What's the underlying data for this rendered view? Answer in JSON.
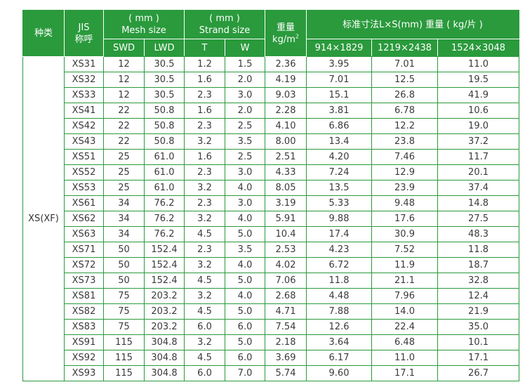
{
  "header": {
    "category": "种类",
    "jis_line1": "JIS",
    "jis_line2": "称呼",
    "mesh_line1": "( mm )",
    "mesh_line2": "Mesh size",
    "strand_line1": "( mm )",
    "strand_line2": "Strand size",
    "weight_line1": "重量",
    "weight_unit": "kg/m",
    "weight_unit_sup": "2",
    "sheet_group": "标准寸法L×S(mm) 重量 ( kg/片 )",
    "sub": {
      "swd": "SWD",
      "lwd": "LWD",
      "t": "T",
      "w": "W",
      "s1": "914×1829",
      "s2": "1219×2438",
      "s3": "1524×3048"
    }
  },
  "group_label": "XS(XF)",
  "rows": [
    {
      "jis": "XS31",
      "swd": "12",
      "lwd": "30.5",
      "t": "1.2",
      "w": "1.5",
      "kgm2": "2.36",
      "s1": "3.95",
      "s2": "7.01",
      "s3": "11.0"
    },
    {
      "jis": "XS32",
      "swd": "12",
      "lwd": "30.5",
      "t": "1.6",
      "w": "2.0",
      "kgm2": "4.19",
      "s1": "7.01",
      "s2": "12.5",
      "s3": "19.5"
    },
    {
      "jis": "XS33",
      "swd": "12",
      "lwd": "30.5",
      "t": "2.3",
      "w": "3.0",
      "kgm2": "9.03",
      "s1": "15.1",
      "s2": "26.8",
      "s3": "41.9"
    },
    {
      "jis": "XS41",
      "swd": "22",
      "lwd": "50.8",
      "t": "1.6",
      "w": "2.0",
      "kgm2": "2.28",
      "s1": "3.81",
      "s2": "6.78",
      "s3": "10.6"
    },
    {
      "jis": "XS42",
      "swd": "22",
      "lwd": "50.8",
      "t": "2.3",
      "w": "2.5",
      "kgm2": "4.10",
      "s1": "6.86",
      "s2": "12.2",
      "s3": "19.0"
    },
    {
      "jis": "XS43",
      "swd": "22",
      "lwd": "50.8",
      "t": "3.2",
      "w": "3.5",
      "kgm2": "8.00",
      "s1": "13.4",
      "s2": "23.8",
      "s3": "37.2"
    },
    {
      "jis": "XS51",
      "swd": "25",
      "lwd": "61.0",
      "t": "1.6",
      "w": "2.5",
      "kgm2": "2.51",
      "s1": "4.20",
      "s2": "7.46",
      "s3": "11.7"
    },
    {
      "jis": "XS52",
      "swd": "25",
      "lwd": "61.0",
      "t": "2.3",
      "w": "3.0",
      "kgm2": "4.33",
      "s1": "7.24",
      "s2": "12.9",
      "s3": "20.1"
    },
    {
      "jis": "XS53",
      "swd": "25",
      "lwd": "61.0",
      "t": "3.2",
      "w": "4.0",
      "kgm2": "8.05",
      "s1": "13.5",
      "s2": "23.9",
      "s3": "37.4"
    },
    {
      "jis": "XS61",
      "swd": "34",
      "lwd": "76.2",
      "t": "2.3",
      "w": "3.0",
      "kgm2": "3.19",
      "s1": "5.33",
      "s2": "9.48",
      "s3": "14.8"
    },
    {
      "jis": "XS62",
      "swd": "34",
      "lwd": "76.2",
      "t": "3.2",
      "w": "4.0",
      "kgm2": "5.91",
      "s1": "9.88",
      "s2": "17.6",
      "s3": "27.5"
    },
    {
      "jis": "XS63",
      "swd": "34",
      "lwd": "76.2",
      "t": "4.5",
      "w": "5.0",
      "kgm2": "10.4",
      "s1": "17.4",
      "s2": "30.9",
      "s3": "48.3"
    },
    {
      "jis": "XS71",
      "swd": "50",
      "lwd": "152.4",
      "t": "2.3",
      "w": "3.5",
      "kgm2": "2.53",
      "s1": "4.23",
      "s2": "7.52",
      "s3": "11.8"
    },
    {
      "jis": "XS72",
      "swd": "50",
      "lwd": "152.4",
      "t": "3.2",
      "w": "4.0",
      "kgm2": "4.02",
      "s1": "6.72",
      "s2": "11.9",
      "s3": "18.7"
    },
    {
      "jis": "XS73",
      "swd": "50",
      "lwd": "152.4",
      "t": "4.5",
      "w": "5.0",
      "kgm2": "7.06",
      "s1": "11.8",
      "s2": "21.1",
      "s3": "32.8"
    },
    {
      "jis": "XS81",
      "swd": "75",
      "lwd": "203.2",
      "t": "3.2",
      "w": "4.0",
      "kgm2": "2.68",
      "s1": "4.48",
      "s2": "7.96",
      "s3": "12.4"
    },
    {
      "jis": "XS82",
      "swd": "75",
      "lwd": "203.2",
      "t": "4.5",
      "w": "5.0",
      "kgm2": "4.71",
      "s1": "7.88",
      "s2": "14.0",
      "s3": "21.9"
    },
    {
      "jis": "XS83",
      "swd": "75",
      "lwd": "203.2",
      "t": "6.0",
      "w": "6.0",
      "kgm2": "7.54",
      "s1": "12.6",
      "s2": "22.4",
      "s3": "35.0"
    },
    {
      "jis": "XS91",
      "swd": "115",
      "lwd": "304.8",
      "t": "3.2",
      "w": "5.0",
      "kgm2": "2.18",
      "s1": "3.64",
      "s2": "6.48",
      "s3": "10.1"
    },
    {
      "jis": "XS92",
      "swd": "115",
      "lwd": "304.8",
      "t": "4.5",
      "w": "6.0",
      "kgm2": "3.69",
      "s1": "6.17",
      "s2": "11.0",
      "s3": "17.1"
    },
    {
      "jis": "XS93",
      "swd": "115",
      "lwd": "304.8",
      "t": "6.0",
      "w": "7.0",
      "kgm2": "5.74",
      "s1": "9.60",
      "s2": "17.1",
      "s3": "26.7"
    }
  ],
  "colors": {
    "header_bg": "#2a9a3c",
    "border": "#2a9a3c",
    "text": "#3a3a3a"
  }
}
